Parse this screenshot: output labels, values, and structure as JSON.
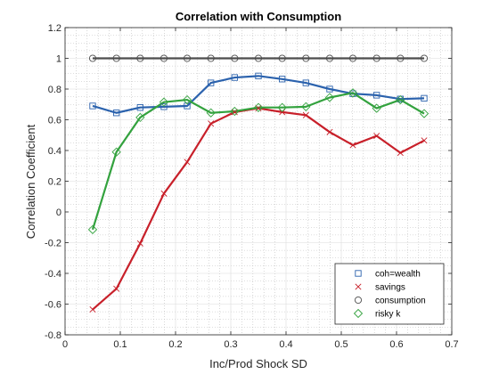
{
  "chart_data": {
    "type": "line",
    "title": "Correlation with Consumption",
    "xlabel": "Inc/Prod Shock SD",
    "ylabel": "Correlation Coefficient",
    "xlim": [
      0,
      0.7
    ],
    "ylim": [
      -0.8,
      1.2
    ],
    "xticks": [
      0,
      0.1,
      0.2,
      0.3,
      0.4,
      0.5,
      0.6,
      0.7
    ],
    "xtick_labels": [
      "0",
      "0.1",
      "0.2",
      "0.3",
      "0.4",
      "0.5",
      "0.6",
      "0.7"
    ],
    "yticks": [
      -0.8,
      -0.6,
      -0.4,
      -0.2,
      0,
      0.2,
      0.4,
      0.6,
      0.8,
      1,
      1.2
    ],
    "ytick_labels": [
      "-0.8",
      "-0.6",
      "-0.4",
      "-0.2",
      "0",
      "0.2",
      "0.4",
      "0.6",
      "0.8",
      "1",
      "1.2"
    ],
    "grid": true,
    "minor_grid": true,
    "legend_position": "bottom-right",
    "x": [
      0.05,
      0.093,
      0.136,
      0.179,
      0.221,
      0.264,
      0.307,
      0.35,
      0.393,
      0.436,
      0.479,
      0.521,
      0.564,
      0.607,
      0.65
    ],
    "series": [
      {
        "name": "coh=wealth",
        "color": "#2b62ad",
        "marker": "square",
        "values": [
          0.69,
          0.645,
          0.68,
          0.685,
          0.69,
          0.84,
          0.875,
          0.885,
          0.865,
          0.84,
          0.8,
          0.77,
          0.76,
          0.735,
          0.74
        ]
      },
      {
        "name": "savings",
        "color": "#c8202a",
        "marker": "x",
        "values": [
          -0.635,
          -0.5,
          -0.205,
          0.12,
          0.325,
          0.575,
          0.65,
          0.675,
          0.65,
          0.63,
          0.52,
          0.435,
          0.495,
          0.385,
          0.465
        ]
      },
      {
        "name": "consumption",
        "color": "#4d4d4d",
        "marker": "circle",
        "values": [
          1,
          1,
          1,
          1,
          1,
          1,
          1,
          1,
          1,
          1,
          1,
          1,
          1,
          1,
          1
        ]
      },
      {
        "name": "risky k",
        "color": "#33a23e",
        "marker": "diamond",
        "values": [
          -0.115,
          0.39,
          0.615,
          0.715,
          0.73,
          0.645,
          0.655,
          0.68,
          0.68,
          0.685,
          0.745,
          0.775,
          0.675,
          0.73,
          0.64
        ]
      }
    ]
  }
}
